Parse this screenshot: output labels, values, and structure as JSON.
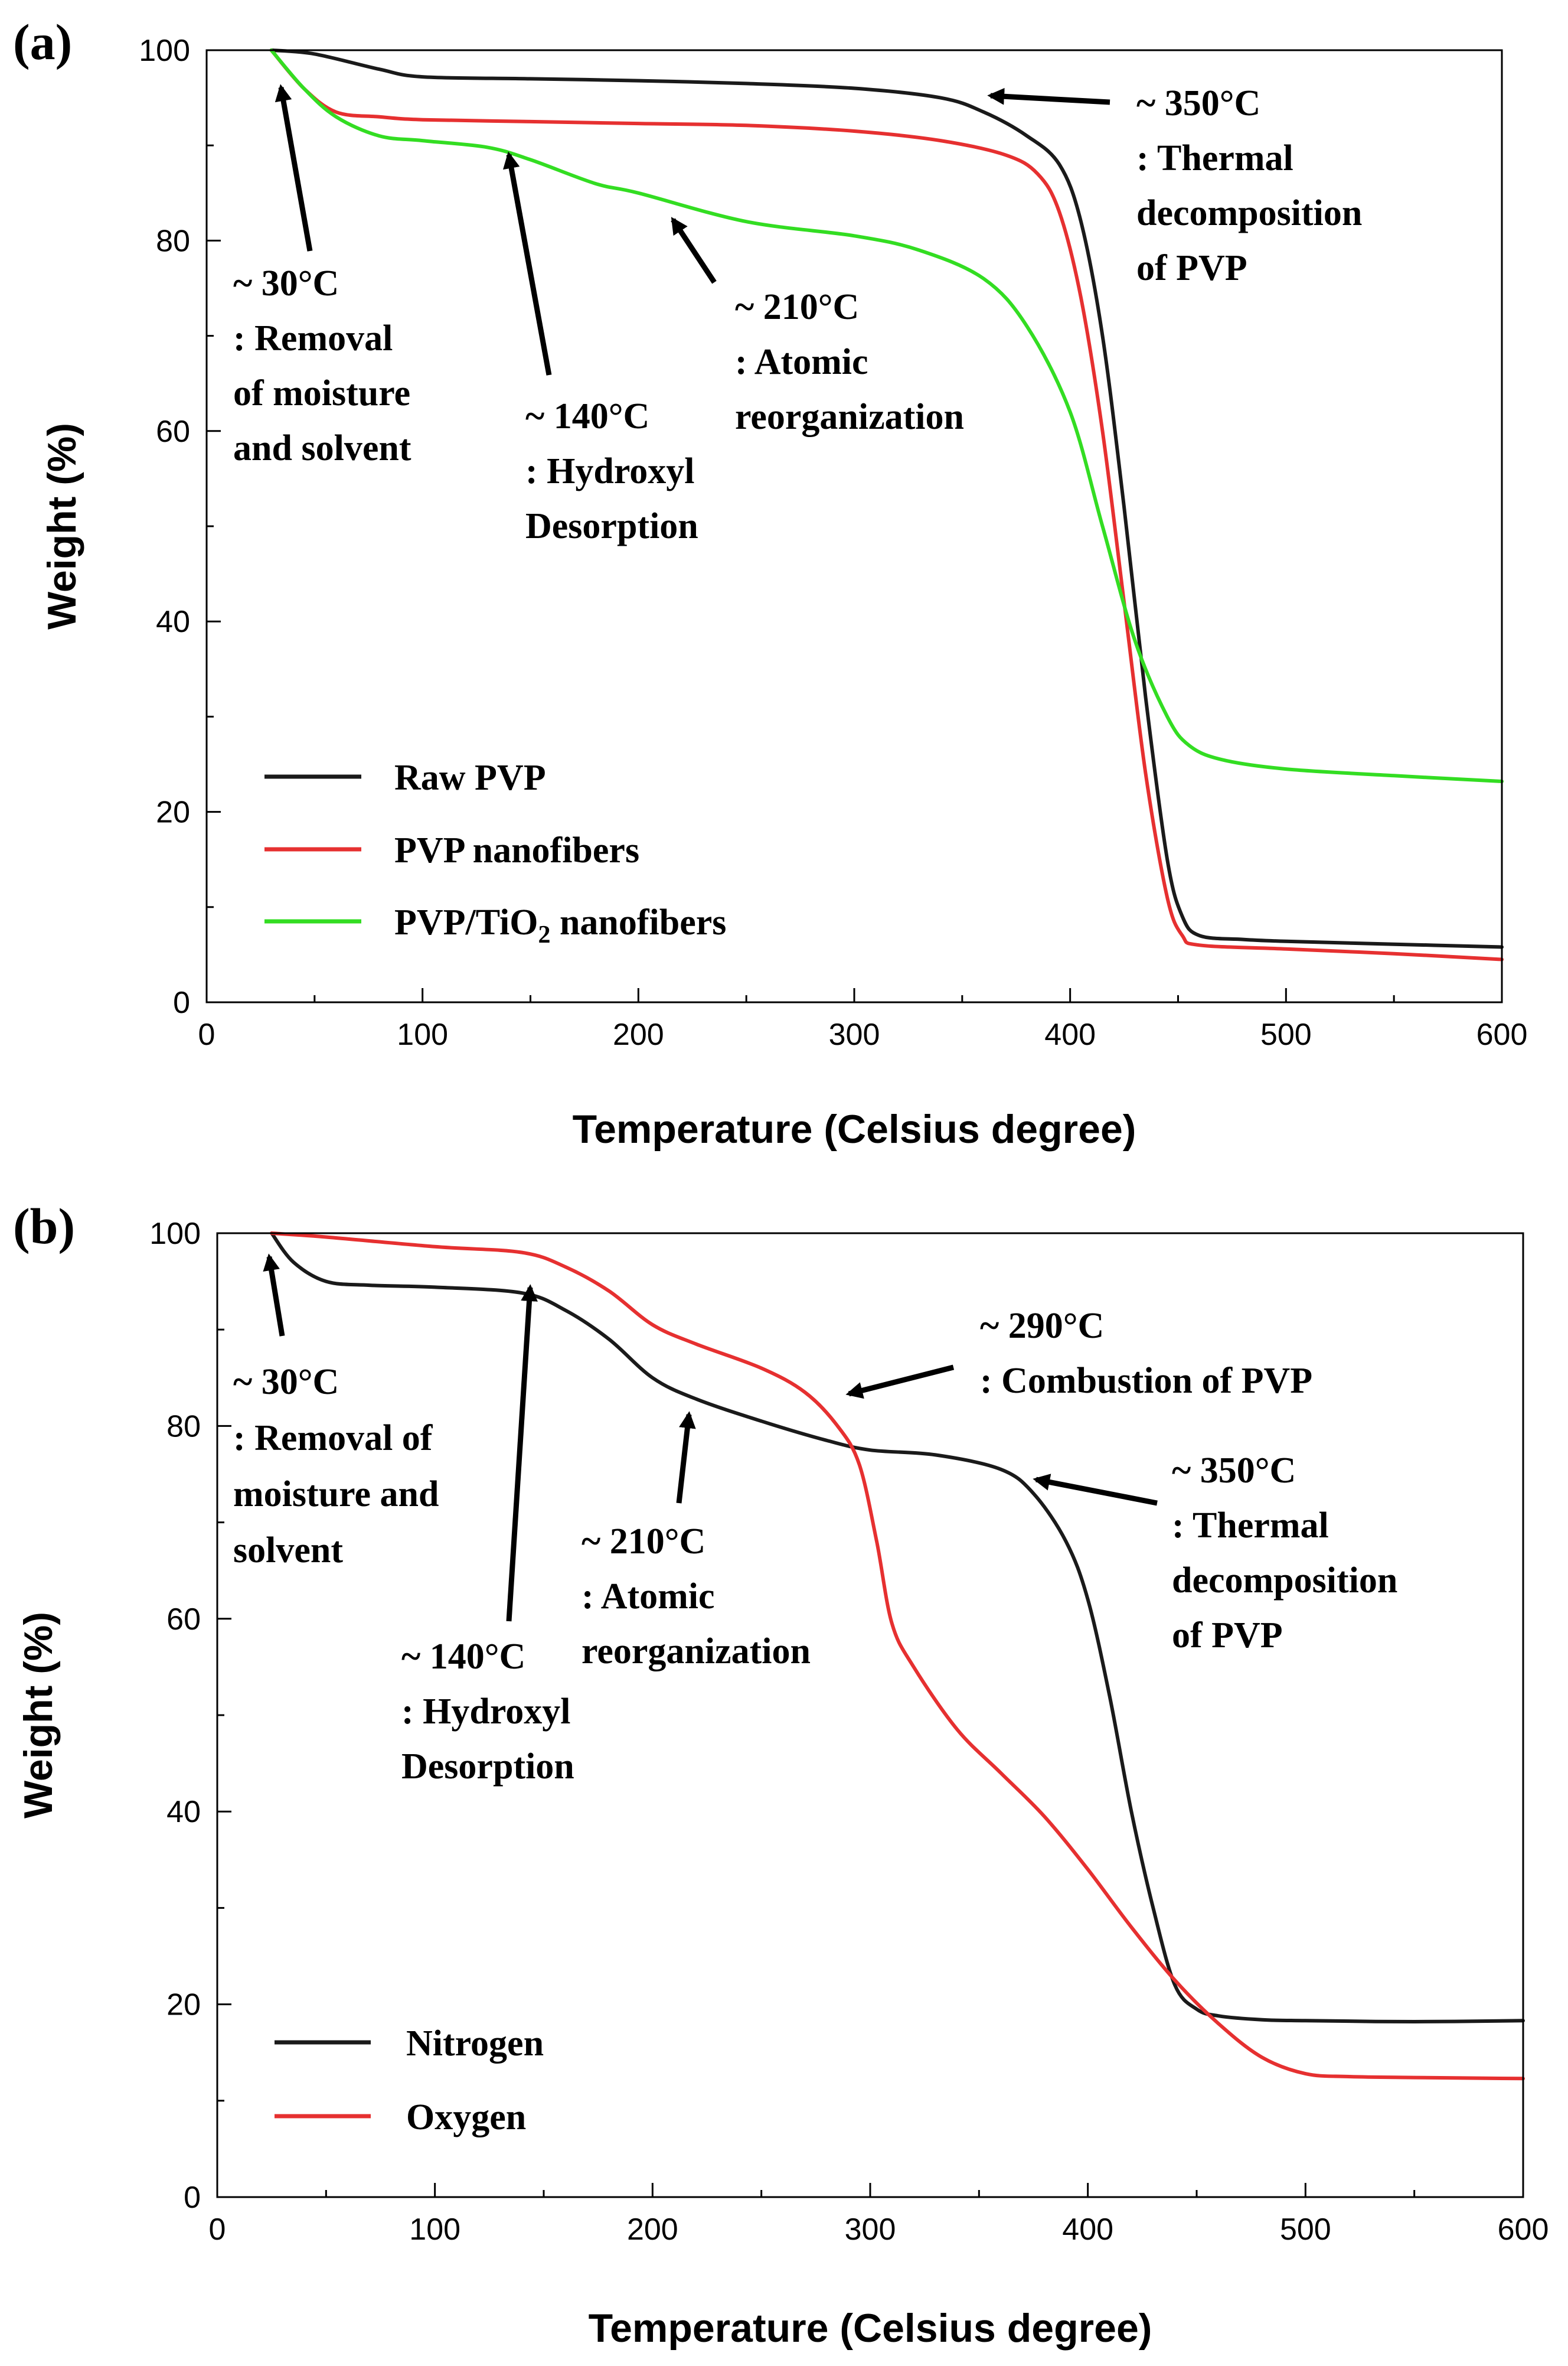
{
  "chart_data": [
    {
      "type": "line",
      "panel_label": "(a)",
      "title": "",
      "xlabel": "Temperature (Celsius degree)",
      "ylabel": "Weight (%)",
      "xlim": [
        0,
        600
      ],
      "ylim": [
        0,
        100
      ],
      "xticks": [
        0,
        100,
        200,
        300,
        400,
        500,
        600
      ],
      "yticks": [
        0,
        20,
        40,
        60,
        80,
        100
      ],
      "grid": false,
      "legend_position": "bottom-left",
      "series": [
        {
          "name": "Raw PVP",
          "label_parts": [
            "Raw PVP"
          ],
          "color": "#1a1a1a",
          "x": [
            30,
            50,
            80,
            100,
            150,
            200,
            250,
            300,
            340,
            360,
            380,
            395,
            405,
            415,
            425,
            435,
            445,
            452,
            460,
            480,
            500,
            550,
            600
          ],
          "y": [
            100,
            99.6,
            98,
            97.2,
            97,
            96.8,
            96.5,
            96,
            95,
            93.5,
            91,
            88,
            82,
            70,
            52,
            32,
            15,
            9,
            7,
            6.6,
            6.4,
            6.1,
            5.8
          ]
        },
        {
          "name": "PVP nanofibers",
          "label_parts": [
            "PVP nanofibers"
          ],
          "color": "#e63030",
          "x": [
            30,
            45,
            60,
            80,
            100,
            150,
            200,
            250,
            300,
            340,
            370,
            385,
            395,
            405,
            415,
            425,
            435,
            445,
            452,
            460,
            500,
            550,
            600
          ],
          "y": [
            100,
            96,
            93.5,
            93,
            92.7,
            92.5,
            92.3,
            92.1,
            91.5,
            90.5,
            89,
            87,
            83,
            74,
            60,
            42,
            24,
            11,
            7,
            6,
            5.6,
            5.1,
            4.5
          ]
        },
        {
          "name": "PVP/TiO2 nanofibers",
          "label_parts": [
            "PVP/TiO",
            "2",
            " nanofibers"
          ],
          "color": "#33dd22",
          "x": [
            30,
            45,
            60,
            80,
            100,
            130,
            150,
            180,
            200,
            250,
            300,
            330,
            360,
            380,
            400,
            415,
            430,
            445,
            455,
            470,
            500,
            550,
            600
          ],
          "y": [
            100,
            96,
            93,
            91,
            90.5,
            89.8,
            88.5,
            86,
            85,
            82,
            80.5,
            79,
            76,
            71,
            62,
            50,
            38,
            30,
            27,
            25.5,
            24.5,
            23.8,
            23.2
          ]
        }
      ],
      "annotations": [
        {
          "lines": [
            "~ 30°C",
            ": Removal",
            "of moisture",
            "and solvent"
          ],
          "point": [
            30,
            99.5
          ]
        },
        {
          "lines": [
            "~ 140°C",
            ": Hydroxyl",
            "Desorption"
          ],
          "point": [
            138,
            89.5
          ]
        },
        {
          "lines": [
            "~ 210°C",
            ": Atomic",
            "reorganization"
          ],
          "point": [
            215,
            82
          ]
        },
        {
          "lines": [
            "~ 350°C",
            ": Thermal",
            "decomposition",
            "of PVP"
          ],
          "point": [
            360,
            95.2
          ]
        }
      ]
    },
    {
      "type": "line",
      "panel_label": "(b)",
      "title": "",
      "xlabel": "Temperature (Celsius degree)",
      "ylabel": "Weight (%)",
      "xlim": [
        0,
        600
      ],
      "ylim": [
        0,
        100
      ],
      "xticks": [
        0,
        100,
        200,
        300,
        400,
        500,
        600
      ],
      "yticks": [
        0,
        20,
        40,
        60,
        80,
        100
      ],
      "grid": false,
      "legend_position": "bottom-left",
      "series": [
        {
          "name": "Nitrogen",
          "label_parts": [
            "Nitrogen"
          ],
          "color": "#1a1a1a",
          "x": [
            25,
            35,
            50,
            70,
            100,
            140,
            160,
            180,
            200,
            220,
            250,
            280,
            300,
            330,
            360,
            375,
            390,
            400,
            410,
            420,
            430,
            440,
            450,
            460,
            480,
            500,
            550,
            600
          ],
          "y": [
            100,
            97,
            95,
            94.6,
            94.4,
            93.8,
            92,
            89,
            85,
            82.8,
            80.5,
            78.5,
            77.5,
            77,
            75.5,
            73,
            68,
            62,
            52,
            40,
            30,
            22,
            19.5,
            18.8,
            18.4,
            18.3,
            18.2,
            18.3
          ]
        },
        {
          "name": "Oxygen",
          "label_parts": [
            "Oxygen"
          ],
          "color": "#e63030",
          "x": [
            25,
            50,
            100,
            140,
            160,
            180,
            200,
            220,
            250,
            270,
            285,
            295,
            303,
            310,
            320,
            340,
            360,
            380,
            400,
            420,
            440,
            460,
            480,
            500,
            520,
            550,
            600
          ],
          "y": [
            100,
            99.6,
            98.6,
            98,
            96.5,
            94,
            90.5,
            88.5,
            86,
            83.5,
            80,
            76,
            68,
            59.5,
            55,
            48.5,
            44,
            39.5,
            34,
            28,
            22.5,
            18,
            14.5,
            12.8,
            12.5,
            12.4,
            12.3
          ]
        }
      ],
      "annotations": [
        {
          "lines": [
            "~ 30°C",
            ": Removal of",
            "moisture and",
            "solvent"
          ],
          "point": [
            27,
            99.5
          ]
        },
        {
          "lines": [
            "~ 140°C",
            ": Hydroxyl",
            "Desorption"
          ],
          "point": [
            146,
            93.5
          ]
        },
        {
          "lines": [
            "~ 210°C",
            ": Atomic",
            "reorganization"
          ],
          "point": [
            218,
            82.5
          ]
        },
        {
          "lines": [
            "~ 290°C",
            ": Combustion of PVP"
          ],
          "point": [
            288,
            84
          ]
        },
        {
          "lines": [
            "~ 350°C",
            ": Thermal",
            "decomposition",
            "of PVP"
          ],
          "point": [
            373,
            75.5
          ]
        }
      ]
    }
  ]
}
